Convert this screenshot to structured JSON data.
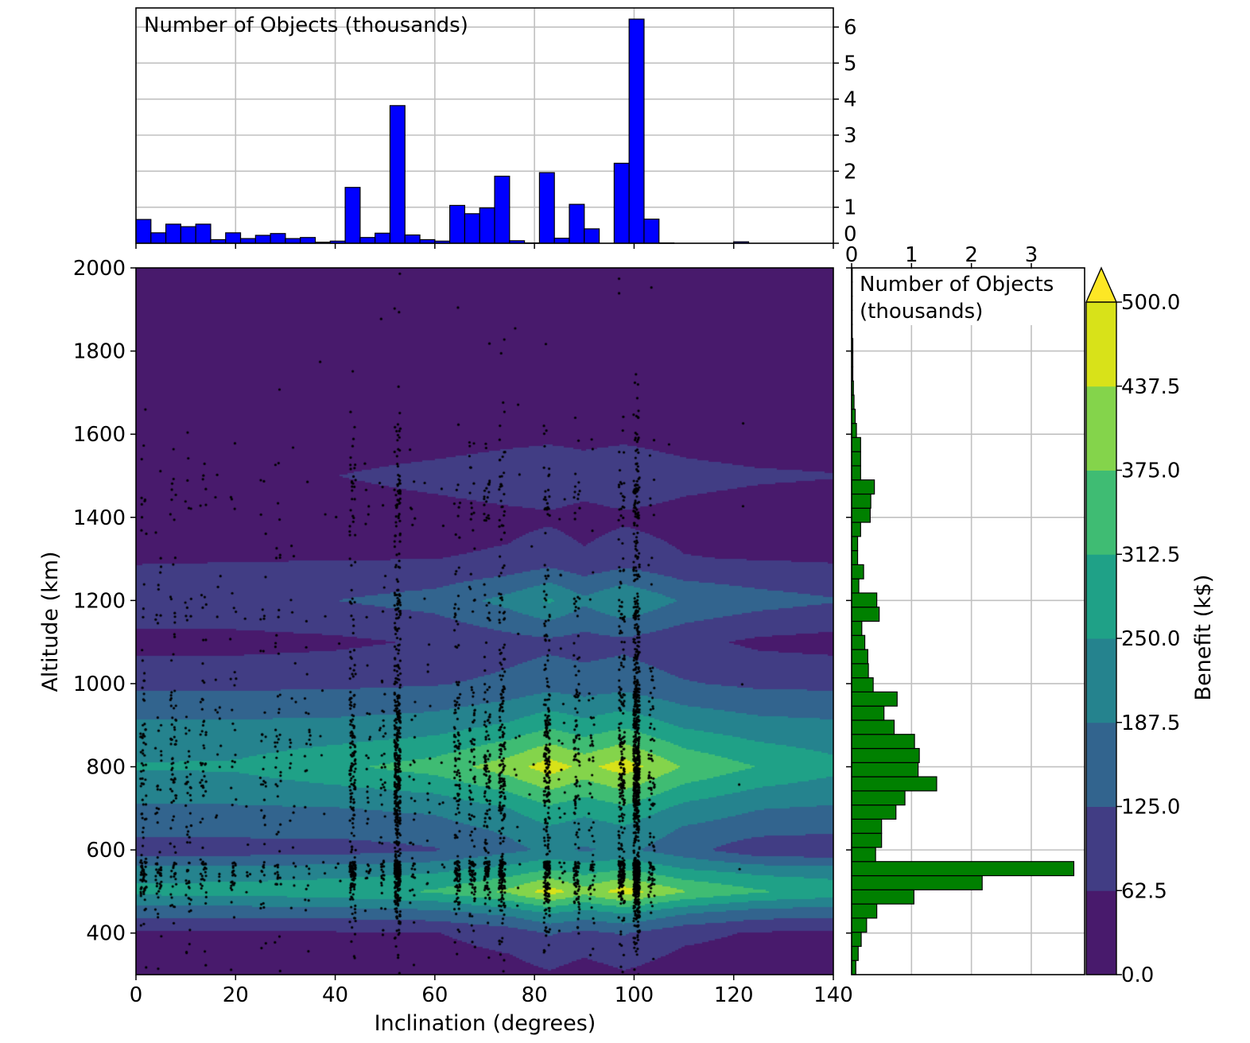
{
  "chart_data": [
    {
      "type": "bar",
      "panel": "top-histogram",
      "title": "Number of Objects (thousands)",
      "bin_edges_start": 0,
      "bin_width": 3,
      "values": [
        0.66,
        0.29,
        0.53,
        0.46,
        0.53,
        0.1,
        0.29,
        0.13,
        0.22,
        0.27,
        0.13,
        0.16,
        0.03,
        0.06,
        1.55,
        0.16,
        0.28,
        3.82,
        0.23,
        0.1,
        0.06,
        1.05,
        0.82,
        0.98,
        1.86,
        0.07,
        0.01,
        1.96,
        0.14,
        1.08,
        0.4,
        0.0,
        2.22,
        6.22,
        0.67,
        0.01,
        0.0,
        0.0,
        0.0,
        0.0,
        0.04,
        0.0,
        0.0,
        0.0,
        0.0,
        0.0,
        0.0
      ],
      "color": "#0000ff",
      "xlim": [
        0,
        140
      ],
      "ylim": [
        0,
        6.53
      ],
      "yticks": [
        "0",
        "1",
        "2",
        "3",
        "4",
        "5",
        "6"
      ],
      "grid": true
    },
    {
      "type": "heatmap",
      "panel": "main-contour",
      "xlabel": "Inclination (degrees)",
      "ylabel": "Altitude (km)",
      "xlim": [
        0,
        140
      ],
      "ylim": [
        300,
        2000
      ],
      "xticks": [
        "0",
        "20",
        "40",
        "60",
        "80",
        "100",
        "120",
        "140"
      ],
      "yticks": [
        "400",
        "600",
        "800",
        "1000",
        "1200",
        "1400",
        "1600",
        "1800",
        "2000"
      ],
      "inclination_nodes": [
        0,
        20,
        40,
        60,
        75,
        83,
        90,
        98,
        110,
        125,
        140
      ],
      "altitude_nodes": [
        300,
        400,
        450,
        500,
        550,
        600,
        650,
        700,
        800,
        900,
        1000,
        1100,
        1200,
        1300,
        1400,
        1500,
        1600,
        2000
      ],
      "benefit_grid": [
        [
          20,
          20,
          20,
          25,
          35,
          55,
          30,
          55,
          25,
          20,
          20
        ],
        [
          55,
          55,
          56,
          60,
          90,
          130,
          110,
          130,
          80,
          56,
          55
        ],
        [
          150,
          150,
          155,
          170,
          210,
          260,
          230,
          260,
          200,
          160,
          150
        ],
        [
          270,
          275,
          290,
          320,
          390,
          470,
          400,
          470,
          380,
          320,
          290
        ],
        [
          220,
          220,
          225,
          240,
          280,
          320,
          290,
          320,
          260,
          230,
          220
        ],
        [
          90,
          90,
          95,
          120,
          170,
          200,
          180,
          200,
          150,
          80,
          70
        ],
        [
          150,
          150,
          150,
          160,
          200,
          240,
          220,
          240,
          180,
          150,
          140
        ],
        [
          180,
          180,
          185,
          200,
          250,
          300,
          270,
          300,
          230,
          190,
          180
        ],
        [
          255,
          260,
          300,
          340,
          410,
          470,
          420,
          470,
          370,
          310,
          270
        ],
        [
          200,
          200,
          205,
          220,
          260,
          300,
          270,
          300,
          240,
          210,
          200
        ],
        [
          110,
          110,
          112,
          120,
          140,
          160,
          150,
          160,
          130,
          112,
          110
        ],
        [
          40,
          40,
          50,
          70,
          100,
          110,
          100,
          110,
          80,
          50,
          40
        ],
        [
          110,
          115,
          125,
          150,
          210,
          260,
          200,
          250,
          180,
          150,
          130
        ],
        [
          55,
          58,
          60,
          62,
          70,
          90,
          70,
          90,
          65,
          60,
          55
        ],
        [
          30,
          30,
          32,
          40,
          50,
          55,
          45,
          55,
          45,
          35,
          30
        ],
        [
          30,
          35,
          62,
          80,
          95,
          100,
          90,
          100,
          80,
          70,
          65
        ],
        [
          30,
          30,
          30,
          35,
          45,
          50,
          45,
          50,
          40,
          30,
          30
        ],
        [
          20,
          20,
          20,
          20,
          20,
          20,
          20,
          20,
          20,
          20,
          20
        ]
      ],
      "scatter_color": "#000000"
    },
    {
      "type": "bar",
      "panel": "right-histogram",
      "orientation": "horizontal",
      "title": "Number of Objects\n(thousands)",
      "title_lines": [
        "Number of Objects",
        "(thousands)"
      ],
      "bin_edges_start": 300,
      "bin_width": 34,
      "values": [
        0.07,
        0.11,
        0.16,
        0.25,
        0.42,
        1.04,
        2.18,
        3.71,
        0.4,
        0.5,
        0.5,
        0.74,
        0.89,
        1.42,
        1.11,
        1.13,
        1.05,
        0.71,
        0.54,
        0.76,
        0.36,
        0.28,
        0.27,
        0.22,
        0.17,
        0.46,
        0.42,
        0.12,
        0.2,
        0.1,
        0.1,
        0.15,
        0.31,
        0.32,
        0.38,
        0.15,
        0.15,
        0.15,
        0.08,
        0.06,
        0.04,
        0.03,
        0.02,
        0.02,
        0.02,
        0.01,
        0.01,
        0.01,
        0.01,
        0.01
      ],
      "color": "#008000",
      "xlim": [
        0,
        3.89
      ],
      "xticks": [
        "0",
        "1",
        "2",
        "3"
      ],
      "grid": true
    },
    {
      "type": "colorbar",
      "label": "Benefit (k$)",
      "levels": [
        0,
        62.5,
        125,
        187.5,
        250,
        312.5,
        375,
        437.5,
        500
      ],
      "tick_labels": [
        "0.0",
        "62.5",
        "125.0",
        "187.5",
        "250.0",
        "312.5",
        "375.0",
        "437.5",
        "500.0"
      ],
      "colors": [
        "#481a6c",
        "#413d84",
        "#32648e",
        "#25838e",
        "#1fa187",
        "#3fbc73",
        "#84d44b",
        "#d8e219"
      ],
      "extend_color": "#fde725",
      "extend": "max"
    }
  ]
}
